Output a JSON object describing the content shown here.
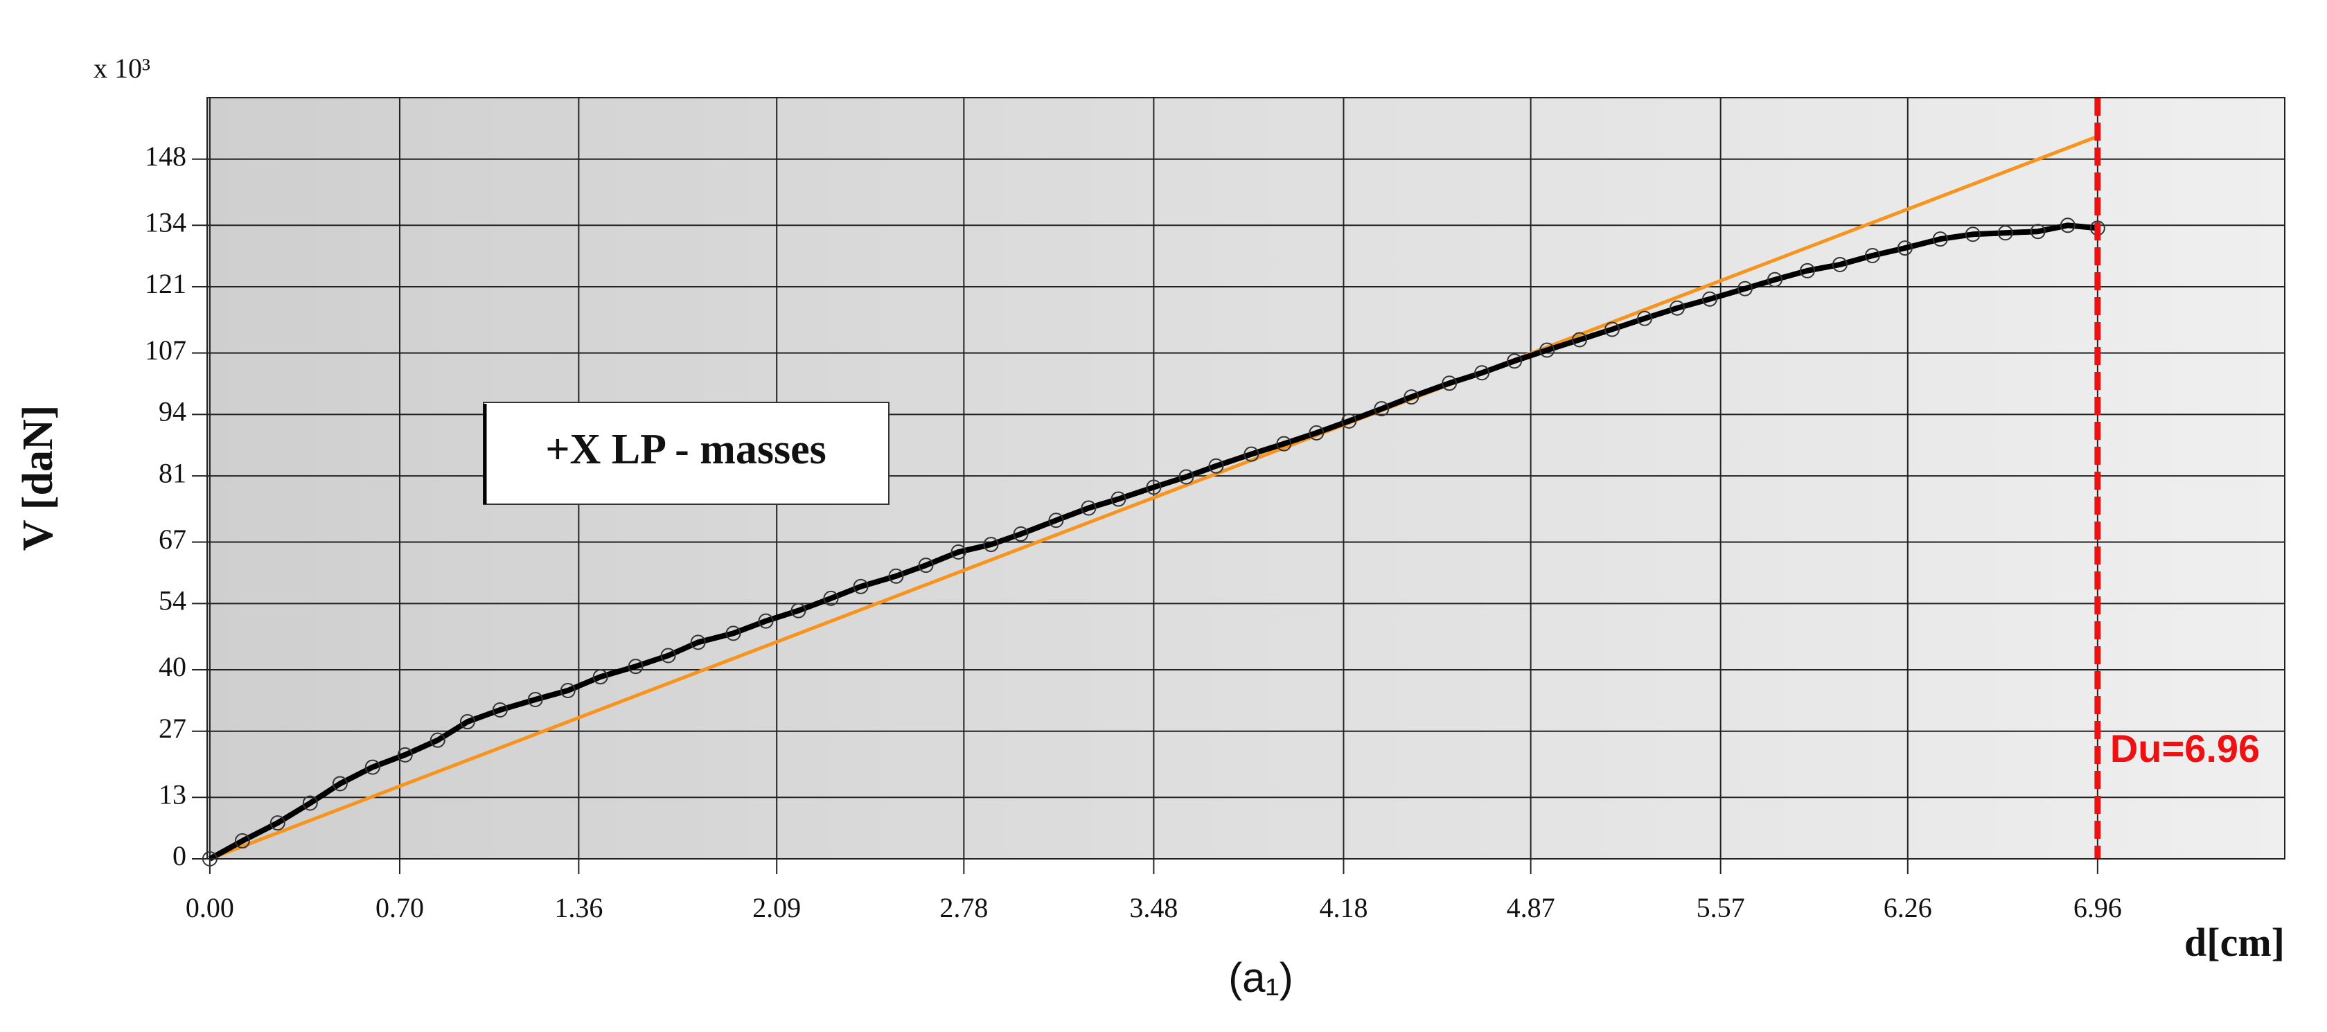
{
  "chart_data": {
    "type": "line",
    "y_label": "V [daN]",
    "y_multiplier": "x 10³",
    "x_label": "d[cm]",
    "caption": "(a₁)",
    "annotation": "+X LP - masses",
    "ultimate_displacement": 6.96,
    "ultimate_label": "Du=6.96",
    "ultimate_color": "#ee1111",
    "xlim": [
      -0.01,
      7.65
    ],
    "ylim": [
      0,
      161
    ],
    "xticks": [
      {
        "value": 0,
        "label": "0.00"
      },
      {
        "value": 0.7,
        "label": "0.70"
      },
      1.36,
      2.09,
      2.78,
      3.48,
      4.18,
      4.87,
      5.57,
      6.26,
      6.96
    ],
    "yticks": [
      0,
      13,
      27,
      40,
      54,
      67,
      81,
      94,
      107,
      121,
      134,
      148
    ],
    "grid": true,
    "series": [
      {
        "color": "#f7941d",
        "markers": false,
        "x": [
          0,
          6.96
        ],
        "values": [
          0,
          152.8
        ]
      },
      {
        "color": "#000000",
        "markers": true,
        "x": [
          0,
          0.12,
          0.25,
          0.37,
          0.48,
          0.6,
          0.72,
          0.84,
          0.95,
          1.07,
          1.2,
          1.32,
          1.44,
          1.57,
          1.69,
          1.8,
          1.93,
          2.05,
          2.17,
          2.29,
          2.4,
          2.53,
          2.64,
          2.76,
          2.88,
          2.99,
          3.12,
          3.24,
          3.35,
          3.48,
          3.6,
          3.71,
          3.84,
          3.96,
          4.08,
          4.2,
          4.32,
          4.43,
          4.57,
          4.69,
          4.81,
          4.93,
          5.05,
          5.17,
          5.29,
          5.41,
          5.53,
          5.66,
          5.77,
          5.89,
          6.01,
          6.13,
          6.25,
          6.38,
          6.5,
          6.62,
          6.74,
          6.85,
          6.96
        ],
        "values": [
          0,
          3.8,
          7.6,
          11.8,
          15.9,
          19.4,
          22,
          25.1,
          29,
          31.5,
          33.7,
          35.6,
          38.5,
          40.7,
          43,
          45.8,
          47.7,
          50.3,
          52.5,
          55.1,
          57.6,
          59.8,
          62.1,
          64.9,
          66.5,
          68.7,
          71.6,
          74.2,
          76.1,
          78.6,
          80.8,
          83.1,
          85.6,
          87.8,
          90.1,
          92.6,
          95.2,
          97.7,
          100.6,
          102.8,
          105.3,
          107.6,
          109.8,
          112,
          114.3,
          116.5,
          118.4,
          120.6,
          122.5,
          124.4,
          125.7,
          127.6,
          129.2,
          131.1,
          132.1,
          132.4,
          132.7,
          134,
          133.4
        ]
      }
    ]
  }
}
